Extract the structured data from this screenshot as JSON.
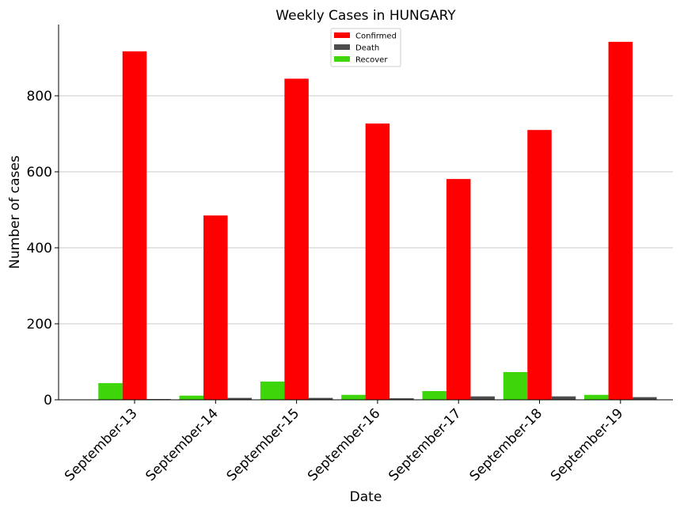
{
  "chart_data": {
    "type": "bar",
    "title": "Weekly Cases in HUNGARY",
    "xlabel": "Date",
    "ylabel": "Number of cases",
    "categories": [
      "September-13",
      "September-14",
      "September-15",
      "September-16",
      "September-17",
      "September-18",
      "September-19"
    ],
    "series": [
      {
        "name": "Recover",
        "color": "#3ed60b",
        "values": [
          44,
          11,
          48,
          13,
          23,
          73,
          13
        ]
      },
      {
        "name": "Confirmed",
        "color": "#ff0000",
        "values": [
          917,
          485,
          845,
          727,
          581,
          710,
          942
        ]
      },
      {
        "name": "Death",
        "color": "#4d4d4d",
        "values": [
          2,
          5,
          5,
          4,
          9,
          9,
          7
        ]
      }
    ],
    "legend_order": [
      "Confirmed",
      "Death",
      "Recover"
    ],
    "legend_position": "top-center",
    "yticks": [
      0,
      200,
      400,
      600,
      800
    ],
    "ylim": [
      0,
      988
    ],
    "grid": "y"
  }
}
